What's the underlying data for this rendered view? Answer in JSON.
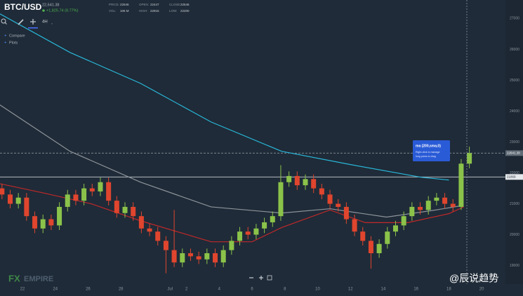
{
  "header": {
    "symbol": "BTC/USD",
    "price": "22,641.38",
    "change": "+1,825.74 (8.77%)",
    "stats": [
      [
        "PRICE:",
        "22646"
      ],
      [
        "VOL:",
        "106 M"
      ],
      [
        "OPEN:",
        "22447"
      ],
      [
        "HIGH:",
        "22915"
      ],
      [
        "CLOSE:",
        "22646"
      ],
      [
        "LOW:",
        "22200"
      ]
    ],
    "interval": "4H",
    "menu": [
      "Compare",
      "Plots"
    ]
  },
  "tooltip": {
    "title": "ma (200,sma,0)",
    "lines": [
      "Right-click to manage",
      "long press to drag"
    ]
  },
  "logo": {
    "fx": "FX",
    "name": "EMPIRE"
  },
  "watermark": "@辰说趋势",
  "chart_data": {
    "type": "candlestick",
    "x": [
      20.75,
      21.25,
      21.75,
      22.25,
      22.75,
      23.25,
      23.75,
      24.25,
      24.75,
      25.25,
      25.75,
      26.25,
      26.75,
      27.25,
      27.75,
      28.25,
      28.75,
      29.25,
      29.75,
      30.25,
      30.75,
      31.25,
      31.75,
      32.25,
      32.75,
      33.25,
      33.75,
      34.25,
      34.75,
      35.25,
      35.75,
      36.25,
      36.75,
      37.25,
      37.75,
      38.25,
      38.75,
      39.25,
      39.75,
      40.25,
      40.75,
      41.25,
      41.75,
      42.25,
      42.75,
      43.25,
      43.75,
      44.25,
      44.75,
      45.25,
      45.75,
      46.25,
      46.75,
      47.25,
      47.75,
      48.25,
      48.75,
      49.25
    ],
    "open": [
      21500,
      21300,
      21000,
      21200,
      20600,
      20200,
      20500,
      20300,
      20900,
      21300,
      21100,
      21500,
      21400,
      21700,
      21100,
      20700,
      20900,
      20600,
      20200,
      20100,
      19800,
      19500,
      19100,
      19400,
      19300,
      19200,
      19400,
      19100,
      19500,
      19800,
      20100,
      20000,
      20200,
      20400,
      20600,
      21700,
      21900,
      21600,
      21800,
      21500,
      21300,
      21000,
      20900,
      20500,
      20100,
      19800,
      19400,
      19700,
      20100,
      20300,
      20600,
      20900,
      20800,
      21100,
      21200,
      21000,
      20900,
      22300
    ],
    "high": [
      21650,
      21450,
      21350,
      21350,
      20750,
      20650,
      20650,
      21050,
      21450,
      21450,
      21650,
      21650,
      21850,
      21850,
      21250,
      21050,
      21050,
      20750,
      20350,
      20250,
      19950,
      20800,
      19550,
      19550,
      19450,
      19550,
      19550,
      19650,
      19950,
      20250,
      20250,
      20350,
      20550,
      20750,
      22250,
      22050,
      22050,
      21950,
      21950,
      21650,
      21450,
      21150,
      21050,
      20650,
      20250,
      19950,
      19850,
      20250,
      20450,
      20750,
      21050,
      21050,
      21250,
      21350,
      21350,
      21150,
      22450,
      22850
    ],
    "low": [
      21150,
      20850,
      20850,
      20450,
      20050,
      20050,
      20150,
      20150,
      20750,
      20950,
      20950,
      21250,
      21250,
      20950,
      20550,
      20550,
      20450,
      20050,
      19950,
      19650,
      18750,
      18950,
      18950,
      19150,
      19050,
      19050,
      18950,
      18950,
      19350,
      19650,
      19850,
      19850,
      20050,
      20250,
      20450,
      21550,
      21450,
      21450,
      21350,
      21150,
      20850,
      20750,
      20350,
      19950,
      19650,
      18900,
      19250,
      19550,
      19950,
      20150,
      20450,
      20650,
      20650,
      20950,
      20850,
      20750,
      20800,
      22150
    ],
    "close": [
      21300,
      21000,
      21200,
      20600,
      20200,
      20500,
      20300,
      20900,
      21300,
      21100,
      21500,
      21400,
      21700,
      21100,
      20700,
      20900,
      20600,
      20200,
      20100,
      19800,
      19500,
      19100,
      19400,
      19300,
      19200,
      19400,
      19100,
      19500,
      19800,
      20100,
      20000,
      20200,
      20400,
      20600,
      21700,
      21900,
      21600,
      21800,
      21500,
      21300,
      21000,
      20900,
      20500,
      20100,
      19800,
      19400,
      19700,
      20100,
      20300,
      20600,
      20900,
      20800,
      21100,
      21200,
      21000,
      20900,
      22300,
      22641
    ],
    "up_color": "#8bc34a",
    "down_color": "#e0452e",
    "lines": [
      {
        "color": "#29b6d8",
        "x": [
          20.63,
          24.9,
          29.2,
          33.5,
          37.8,
          42.0,
          46.3,
          48.0
        ],
        "values": [
          27150,
          25900,
          24900,
          23650,
          22700,
          22270,
          21860,
          21770
        ]
      },
      {
        "color": "#8d939a",
        "x": [
          20.63,
          24.9,
          29.2,
          33.5,
          37.8,
          40.75,
          44.2,
          47.2,
          48.9
        ],
        "values": [
          24200,
          22700,
          21700,
          20900,
          20700,
          20840,
          20570,
          20800,
          20950
        ]
      },
      {
        "color": "#c0282a",
        "x": [
          20.63,
          23.2,
          26.2,
          29.2,
          33.5,
          36.0,
          37.8,
          40.75,
          42.9,
          45.5,
          48.0,
          48.9
        ],
        "values": [
          21650,
          21360,
          21000,
          20450,
          19770,
          19770,
          20230,
          20800,
          20390,
          20390,
          20680,
          20900
        ]
      }
    ],
    "price_lines": [
      {
        "value": 22641.38,
        "style": "dashed",
        "color": "#9aa3ad"
      },
      {
        "value": 21869,
        "style": "solid",
        "color": "#c9ced4"
      }
    ],
    "xlim": [
      20.63,
      51.45
    ],
    "ylim": [
      18400,
      27600
    ],
    "xticks": [
      22,
      24,
      26,
      28,
      {
        "value": 31,
        "label": "Jul"
      },
      {
        "value": 32,
        "label": "2"
      },
      {
        "value": 34,
        "label": "4"
      },
      {
        "value": 36,
        "label": "6"
      },
      {
        "value": 38,
        "label": "8"
      },
      {
        "value": 40,
        "label": "10"
      },
      {
        "value": 42,
        "label": "12"
      },
      {
        "value": 44,
        "label": "14"
      },
      {
        "value": 46,
        "label": "16"
      },
      {
        "value": 48,
        "label": "18"
      },
      {
        "value": 50,
        "label": "20"
      }
    ],
    "yticks": [
      19000,
      20000,
      21000,
      22000,
      23000,
      24000,
      25000,
      26000,
      27000
    ],
    "grid": false
  }
}
